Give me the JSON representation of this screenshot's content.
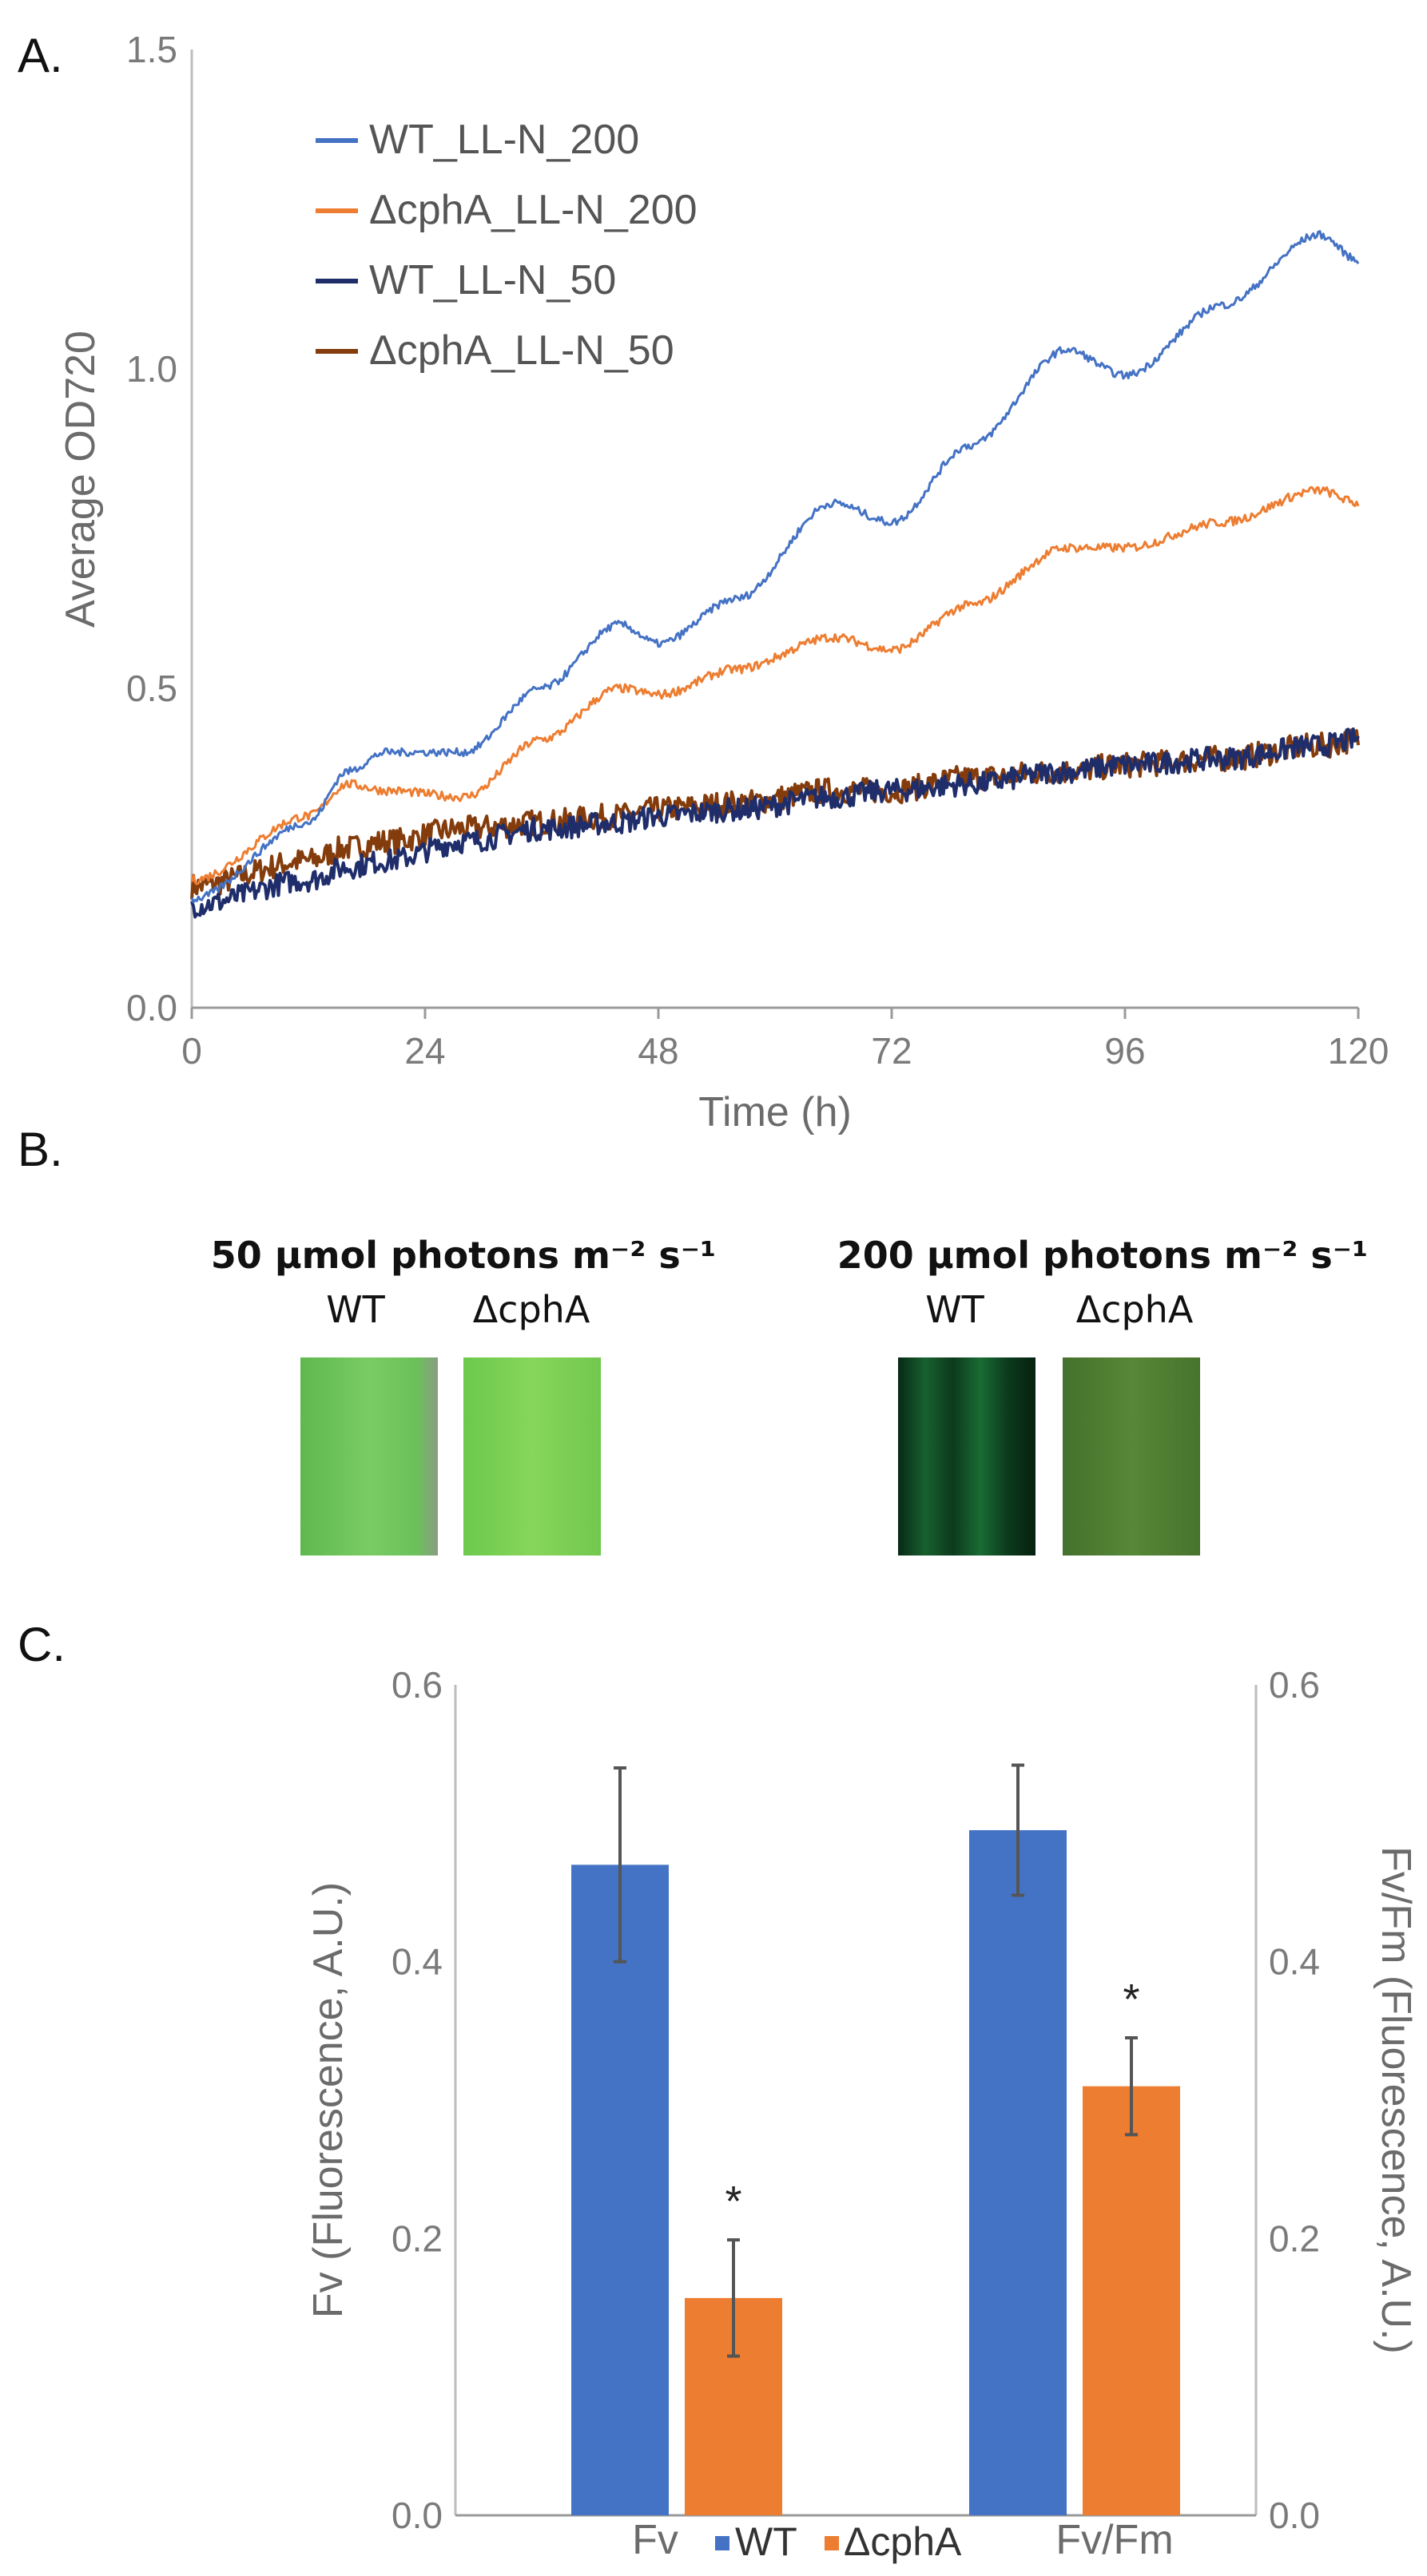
{
  "panels": {
    "a": "A.",
    "b": "B.",
    "c": "C."
  },
  "chart_data": [
    {
      "type": "line",
      "title": "",
      "xlabel": "Time (h)",
      "ylabel": "Average OD720",
      "xlim": [
        0,
        120
      ],
      "ylim": [
        0,
        1.5
      ],
      "xticks": [
        "0",
        "24",
        "48",
        "72",
        "96",
        "120"
      ],
      "yticks": [
        "0.0",
        "0.5",
        "1.0",
        "1.5"
      ],
      "x": [
        0,
        12,
        16,
        20,
        28,
        36,
        44,
        48,
        56,
        66,
        72,
        80,
        90,
        96,
        106,
        116,
        120
      ],
      "series": [
        {
          "name": "WT_LL-N_200",
          "color": "#4472C4",
          "values": [
            0.17,
            0.29,
            0.37,
            0.4,
            0.4,
            0.5,
            0.6,
            0.57,
            0.64,
            0.79,
            0.76,
            0.88,
            1.03,
            0.99,
            1.1,
            1.21,
            1.17
          ]
        },
        {
          "name": "ΔcphA_LL-N_200",
          "color": "#ED7D31",
          "values": [
            0.2,
            0.3,
            0.35,
            0.34,
            0.33,
            0.42,
            0.5,
            0.49,
            0.53,
            0.58,
            0.56,
            0.63,
            0.72,
            0.72,
            0.76,
            0.81,
            0.79
          ]
        },
        {
          "name": "WT_LL-N_50",
          "color": "#1F2E6B",
          "values": [
            0.16,
            0.2,
            0.22,
            0.23,
            0.26,
            0.28,
            0.29,
            0.3,
            0.31,
            0.33,
            0.34,
            0.35,
            0.37,
            0.38,
            0.39,
            0.41,
            0.42
          ]
        },
        {
          "name": "ΔcphA_LL-N_50",
          "color": "#843C0C",
          "values": [
            0.19,
            0.23,
            0.25,
            0.26,
            0.28,
            0.29,
            0.3,
            0.31,
            0.32,
            0.34,
            0.34,
            0.36,
            0.37,
            0.38,
            0.39,
            0.41,
            0.42
          ]
        }
      ],
      "legend_position": "top-left"
    },
    {
      "type": "bar",
      "title": "",
      "ylabel_left": "Fv (Fluorescence, A.U.)",
      "ylabel_right": "Fv/Fm (Fluorescence, A.U.)",
      "ylim": [
        0,
        0.6
      ],
      "yticks": [
        "0.0",
        "0.2",
        "0.4",
        "0.6"
      ],
      "categories": [
        "Fv",
        "Fv/Fm"
      ],
      "series": [
        {
          "name": "WT",
          "color": "#4472C4",
          "values": [
            0.47,
            0.495
          ],
          "errors": [
            0.07,
            0.047
          ]
        },
        {
          "name": "ΔcphA",
          "color": "#ED7D31",
          "values": [
            0.157,
            0.31
          ],
          "errors": [
            0.042,
            0.035
          ]
        }
      ],
      "annotations": [
        "*",
        "*"
      ],
      "legend": [
        "WT",
        "ΔcphA"
      ],
      "legend_position": "bottom"
    }
  ],
  "panel_b": {
    "conditions": [
      {
        "label": "50 µmol photons m⁻² s⁻¹",
        "strains": [
          "WT",
          "ΔcphA"
        ],
        "swatch_colors": [
          "#6fc45c",
          "#7dcf52"
        ]
      },
      {
        "label": "200 µmol photons m⁻² s⁻¹",
        "strains": [
          "WT",
          "ΔcphA"
        ],
        "swatch_colors": [
          "#0f4a26",
          "#4c7a32"
        ]
      }
    ]
  }
}
